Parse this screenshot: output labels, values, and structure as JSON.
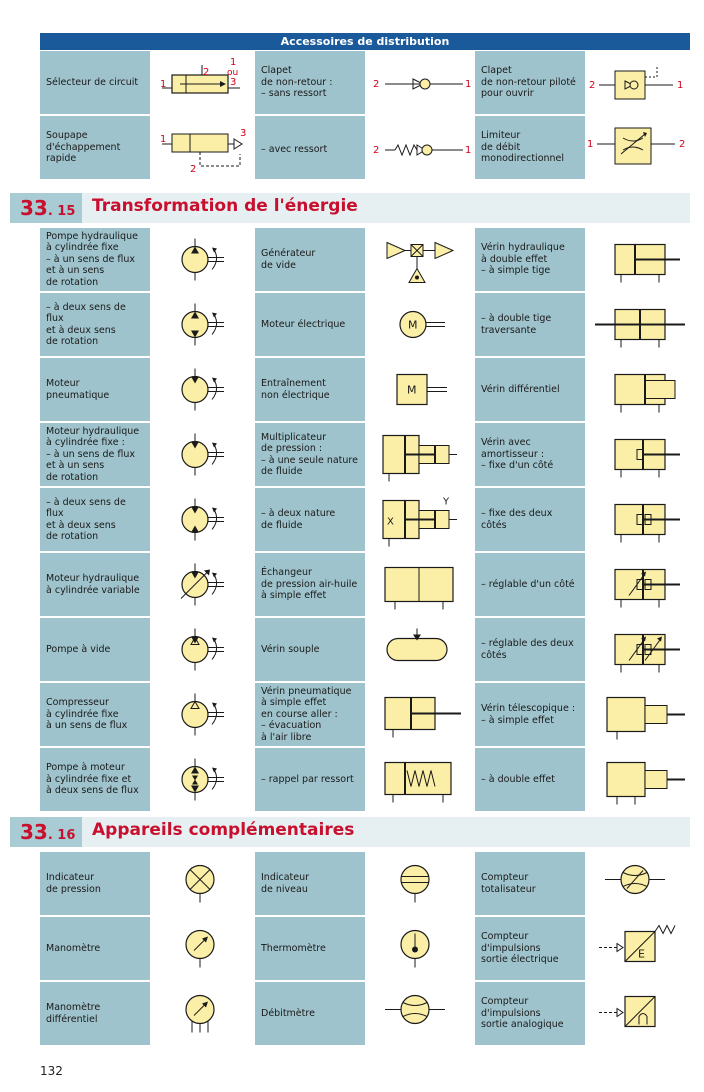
{
  "header": {
    "title": "Accessoires de distribution"
  },
  "distribution": {
    "selecteur": "Sélecteur de circuit",
    "clapet_titre": "Clapet\nde non-retour :\n– sans ressort",
    "clapet_pilote": "Clapet\nde non-retour piloté\npour ouvrir",
    "soupape": "Soupape\nd'échappement\nrapide",
    "avec_ressort": "– avec ressort",
    "limiteur": "Limiteur\nde débit\nmonodirectionnel",
    "port_labels": {
      "one": "1",
      "two": "2",
      "three": "3",
      "ou": "ou"
    }
  },
  "section15": {
    "num_big": "33",
    "num_small": ". 15",
    "title": "Transformation de l'énergie"
  },
  "energy": {
    "col1": [
      "Pompe hydraulique\nà cylindrée fixe\n– à un sens de flux\n   et à un sens\n   de rotation",
      "– à deux sens de flux\n   et à deux sens\n   de rotation",
      "Moteur\npneumatique",
      "Moteur hydraulique\nà cylindrée fixe :\n– à un sens de flux\n   et à un sens\n   de rotation",
      "– à deux sens de flux\n   et à deux sens\n   de rotation",
      "Moteur hydraulique\nà cylindrée variable",
      "Pompe à vide",
      "Compresseur\nà cylindrée fixe\nà un sens de flux",
      "Pompe à moteur\nà cylindrée fixe et\nà deux sens de flux"
    ],
    "col2": [
      "Générateur\nde vide",
      "Moteur électrique",
      "Entraînement\nnon électrique",
      "Multiplicateur\nde pression :\n– à une seule nature\n   de fluide",
      "– à deux nature\n   de fluide",
      "Échangeur\nde pression air-huile\nà simple effet",
      "Vérin souple",
      "Vérin pneumatique\nà simple effet\nen course aller :\n– évacuation\n   à l'air libre",
      "– rappel par ressort"
    ],
    "col3": [
      "Vérin hydraulique\nà double effet\n– à simple tige",
      "– à double tige\n   traversante",
      "Vérin différentiel",
      "Vérin avec\namortisseur :\n– fixe d'un côté",
      "– fixe des deux côtés",
      "– réglable d'un côté",
      "– réglable des deux\n   côtés",
      "Vérin télescopique :\n– à simple effet",
      "– à double effet"
    ],
    "motor_letter": "M",
    "x_letter": "X",
    "y_letter": "Y"
  },
  "section16": {
    "num_big": "33",
    "num_small": ". 16",
    "title": "Appareils complémentaires"
  },
  "complementary": {
    "col1": [
      "Indicateur\nde pression",
      "Manomètre",
      "Manomètre\ndifférentiel"
    ],
    "col2": [
      "Indicateur\nde niveau",
      "Thermomètre",
      "Débitmètre"
    ],
    "col3": [
      "Compteur\ntotalisateur",
      "Compteur\nd'impulsions\nsortie électrique",
      "Compteur\nd'impulsions\nsortie analogique"
    ],
    "e_letter": "E"
  },
  "footer": {
    "page": "132"
  },
  "colors": {
    "header_blue": "#1b5a9a",
    "label_teal": "#9fc3cc",
    "symbol_fill": "#fbeea6",
    "section_red": "#c8102e",
    "port_red": "#d0021b"
  }
}
